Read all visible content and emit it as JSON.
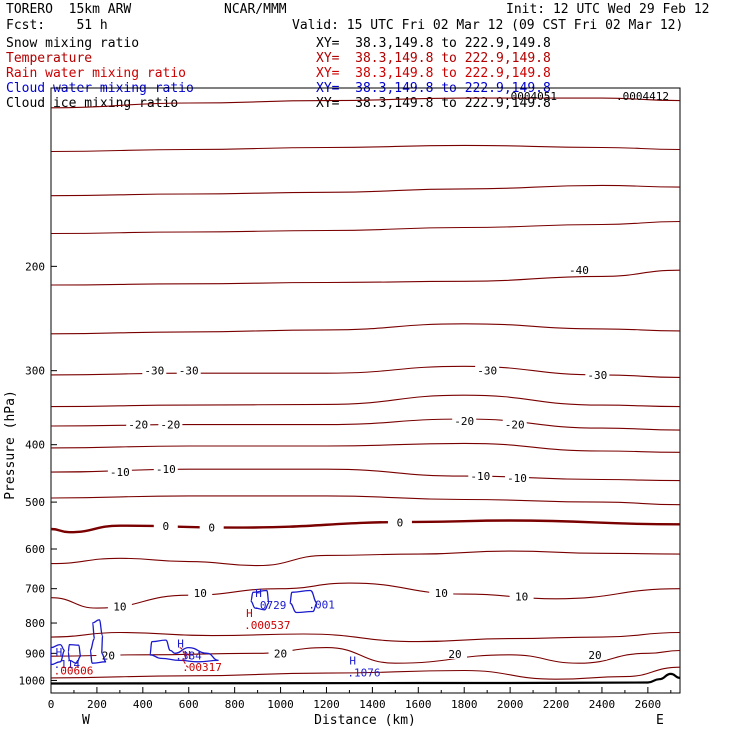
{
  "header": {
    "model": "TORERO  15km ARW",
    "center": "NCAR/MMM",
    "init": "Init: 12 UTC Wed 29 Feb 12",
    "fcst": "Fcst:    51 h",
    "valid": "Valid: 15 UTC Fri 02 Mar 12 (09 CST Fri 02 Mar 12)"
  },
  "legend": [
    {
      "name": "Snow mixing ratio",
      "xy": "XY=  38.3,149.8 to 222.9,149.8",
      "color": "#000000"
    },
    {
      "name": "Temperature",
      "xy": "XY=  38.3,149.8 to 222.9,149.8",
      "color": "#b00000"
    },
    {
      "name": "Rain water mixing ratio",
      "xy": "XY=  38.3,149.8 to 222.9,149.8",
      "color": "#cc0000"
    },
    {
      "name": "Cloud water mixing ratio",
      "xy": "XY=  38.3,149.8 to 222.9,149.8",
      "color": "#0000cc"
    },
    {
      "name": "Cloud ice mixing ratio",
      "xy": "XY=  38.3,149.8 to 222.9,149.8",
      "color": "#000000"
    }
  ],
  "colors": {
    "temperature": "#7a0000",
    "freezing": "#7a0000",
    "cloud_water": "#1a1acc",
    "rain": "#cc0000",
    "terrain": "#000000"
  },
  "chart_data": {
    "type": "line",
    "xlabel": "Distance (km)",
    "ylabel": "Pressure (hPa)",
    "xlim": [
      0,
      2740
    ],
    "ylim": [
      1050,
      100
    ],
    "y_scale": "log",
    "x_ticks": [
      0,
      200,
      400,
      600,
      800,
      1000,
      1200,
      1400,
      1600,
      1800,
      2000,
      2200,
      2400,
      2600
    ],
    "y_ticks": [
      200,
      300,
      400,
      500,
      600,
      700,
      800,
      900,
      1000
    ],
    "west_label": "W",
    "east_label": "E",
    "max_label": ".0004412",
    "max_label2": ".0004051",
    "temperature_contours": [
      {
        "level": -60,
        "x": [
          0,
          600,
          1200,
          1800,
          2400,
          2740
        ],
        "p": [
          108,
          106,
          105,
          104,
          104,
          105
        ]
      },
      {
        "level": -55,
        "x": [
          0,
          600,
          1200,
          1800,
          2400,
          2740
        ],
        "p": [
          128,
          127,
          126,
          125,
          126,
          127
        ]
      },
      {
        "level": -50,
        "x": [
          0,
          600,
          1200,
          1800,
          2400,
          2740
        ],
        "p": [
          152,
          151,
          150,
          148,
          146,
          147
        ]
      },
      {
        "level": -45,
        "x": [
          0,
          600,
          1200,
          1800,
          2400,
          2740
        ],
        "p": [
          176,
          175,
          174,
          172,
          170,
          168
        ]
      },
      {
        "level": -40,
        "x": [
          0,
          600,
          1200,
          1800,
          2400,
          2740
        ],
        "p": [
          215,
          214,
          213,
          212,
          208,
          203
        ]
      },
      {
        "level": -35,
        "x": [
          0,
          600,
          1200,
          1800,
          2400,
          2740
        ],
        "p": [
          260,
          258,
          256,
          250,
          255,
          257
        ]
      },
      {
        "level": -30,
        "x": [
          0,
          600,
          1200,
          1800,
          2400,
          2740
        ],
        "p": [
          305,
          303,
          303,
          295,
          305,
          308
        ]
      },
      {
        "level": -25,
        "x": [
          0,
          600,
          1200,
          1800,
          2400,
          2740
        ],
        "p": [
          345,
          343,
          342,
          330,
          343,
          345
        ]
      },
      {
        "level": -20,
        "x": [
          0,
          600,
          1200,
          1800,
          2400,
          2740
        ],
        "p": [
          372,
          370,
          370,
          362,
          375,
          378
        ]
      },
      {
        "level": -15,
        "x": [
          0,
          600,
          1200,
          1800,
          2400,
          2740
        ],
        "p": [
          405,
          402,
          402,
          398,
          410,
          412
        ]
      },
      {
        "level": -10,
        "x": [
          0,
          600,
          1200,
          1800,
          2400,
          2740
        ],
        "p": [
          445,
          440,
          440,
          452,
          458,
          460
        ]
      },
      {
        "level": -5,
        "x": [
          0,
          600,
          1200,
          1800,
          2400,
          2740
        ],
        "p": [
          492,
          488,
          488,
          495,
          500,
          505
        ]
      },
      {
        "level": 0,
        "x": [
          0,
          80,
          300,
          800,
          1600,
          2000,
          2740
        ],
        "p": [
          555,
          562,
          548,
          552,
          540,
          537,
          545
        ]
      },
      {
        "level": 5,
        "x": [
          0,
          300,
          600,
          900,
          1200,
          1600,
          2000,
          2400,
          2740
        ],
        "p": [
          635,
          622,
          630,
          640,
          615,
          612,
          605,
          610,
          612
        ]
      },
      {
        "level": 10,
        "x": [
          0,
          200,
          600,
          1000,
          1300,
          1800,
          2200,
          2740
        ],
        "p": [
          725,
          755,
          718,
          700,
          685,
          715,
          728,
          700
        ]
      },
      {
        "level": 15,
        "x": [
          0,
          300,
          700,
          1100,
          1600,
          2000,
          2400,
          2740
        ],
        "p": [
          845,
          830,
          840,
          835,
          860,
          850,
          845,
          830
        ]
      },
      {
        "level": 20,
        "x": [
          0,
          400,
          900,
          1200,
          1500,
          2000,
          2300,
          2600,
          2740
        ],
        "p": [
          910,
          905,
          900,
          880,
          935,
          905,
          935,
          900,
          890
        ]
      },
      {
        "level": 25,
        "x": [
          0,
          600,
          1200,
          1800,
          2200,
          2500,
          2740
        ],
        "p": [
          990,
          982,
          972,
          962,
          995,
          985,
          950
        ]
      }
    ],
    "temperature_labels": [
      "-40",
      "-30",
      "-30",
      "-30",
      "-30",
      "-20",
      "-20",
      "-20",
      "-20",
      "-10",
      "-10",
      "-10",
      "-10",
      "0",
      "0",
      "0",
      "10",
      "10",
      "10",
      "10",
      "20",
      "20",
      "20",
      "20"
    ],
    "highs": [
      {
        "label": "H",
        "value": ".0729",
        "x": 890,
        "p": 723,
        "color": "#1a1acc"
      },
      {
        "label": "",
        "value": ".001",
        "x": 1130,
        "p": 722,
        "color": "#1a1acc"
      },
      {
        "label": "H",
        "value": ".000537",
        "x": 850,
        "p": 782,
        "color": "#cc0000"
      },
      {
        "label": "H",
        "value": ".384",
        "x": 550,
        "p": 880,
        "color": "#1a1acc"
      },
      {
        "label": "H",
        "value": ".00317",
        "x": 580,
        "p": 920,
        "color": "#cc0000"
      },
      {
        "label": "H",
        "value": ".114",
        "x": 20,
        "p": 910,
        "color": "#1a1acc"
      },
      {
        "label": "",
        "value": ".00606",
        "x": 20,
        "p": 932,
        "color": "#cc0000"
      },
      {
        "label": "H",
        "value": ".1076",
        "x": 1300,
        "p": 940,
        "color": "#1a1acc"
      }
    ],
    "terrain": {
      "x": [
        0,
        1600,
        2000,
        2600,
        2650,
        2700,
        2740
      ],
      "p": [
        1012,
        1010,
        1010,
        1008,
        995,
        975,
        990
      ]
    }
  }
}
